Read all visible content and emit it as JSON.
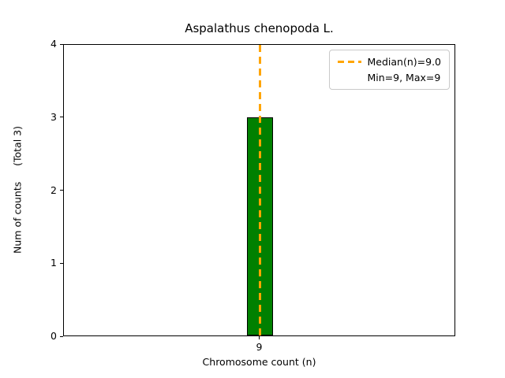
{
  "chart_data": {
    "type": "bar",
    "title": "Aspalathus chenopoda L.",
    "xlabel": "Chromosome count (n)",
    "ylabel": "Num of counts     (Total 3)",
    "categories": [
      "9"
    ],
    "values": [
      3
    ],
    "ylim": [
      0,
      4
    ],
    "yticks": [
      0,
      1,
      2,
      3,
      4
    ],
    "bar_color": "#008000",
    "bar_edge_color": "#000000",
    "grid": false,
    "median_line": {
      "value": 9.0,
      "color": "#ffa500",
      "style": "dashed"
    },
    "legend": {
      "position": "upper right",
      "entries": [
        {
          "swatch": "dashed-line",
          "label": "Median(n)=9.0"
        },
        {
          "swatch": "none",
          "label": "Min=9, Max=9"
        }
      ]
    }
  }
}
